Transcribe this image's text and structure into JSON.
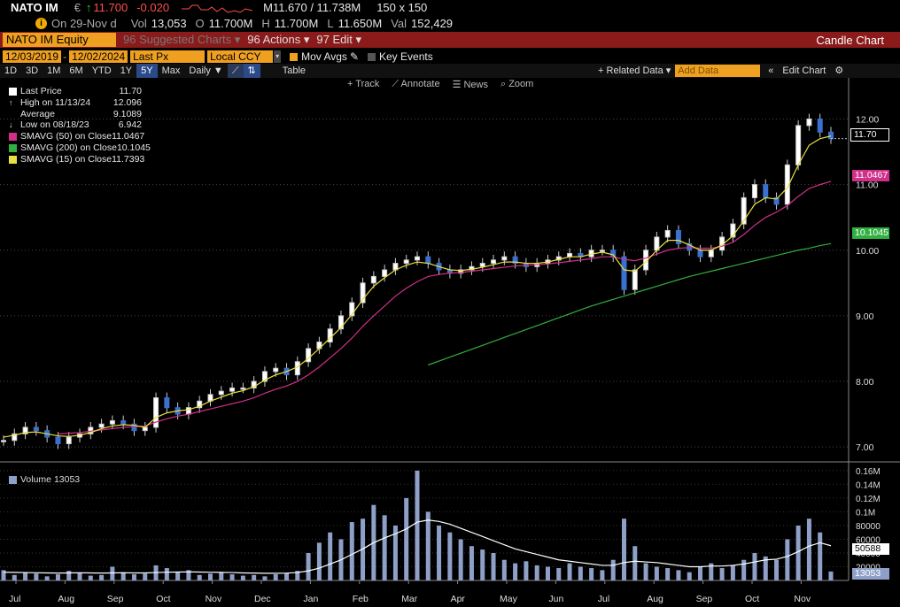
{
  "ticker": {
    "name": "NATO IM",
    "currency": "€",
    "arrow": "↑",
    "last": "11.700",
    "change": "-0.020",
    "mid": "M11.670 / 11.738M",
    "size": "150 x 150",
    "date_label": "On 29-Nov d",
    "vol_label": "Vol",
    "vol": "13,053",
    "open_label": "O",
    "open": "11.700M",
    "high_label": "H",
    "high": "11.700M",
    "low_label": "L",
    "low": "11.650M",
    "val_label": "Val",
    "val": "152,429"
  },
  "menu": {
    "security": "NATO IM Equity",
    "suggested": "96 Suggested Charts ▾",
    "actions": "96 Actions ▾",
    "edit": "97 Edit ▾",
    "title": "Candle Chart"
  },
  "params": {
    "start": "12/03/2019",
    "end": "12/02/2024",
    "field": "Last Px",
    "ccy": "Local CCY",
    "mov_avgs": "Mov Avgs",
    "key_events": "Key Events"
  },
  "toolbar": {
    "periods": [
      "1D",
      "3D",
      "1M",
      "6M",
      "YTD",
      "1Y",
      "5Y",
      "Max"
    ],
    "selected": "5Y",
    "freq": "Daily ▼",
    "table": "Table",
    "related": "+ Related Data ▾",
    "add_data_placeholder": "Add Data",
    "edit_chart": "Edit Chart"
  },
  "tools": {
    "track": "+ Track",
    "annotate": "⟋ Annotate",
    "news": "☰ News",
    "zoom": "⌕ Zoom"
  },
  "legend": [
    {
      "label": "Last Price",
      "value": "11.70",
      "color": "#ffffff"
    },
    {
      "label": "High on 11/13/24",
      "value": "12.096",
      "color": ""
    },
    {
      "label": "Average",
      "value": "9.1089",
      "color": ""
    },
    {
      "label": "Low on 08/18/23",
      "value": "6.942",
      "color": ""
    },
    {
      "label": "SMAVG (50)  on Close",
      "value": "11.0467",
      "color": "#d0308a"
    },
    {
      "label": "SMAVG (200)  on Close",
      "value": "10.1045",
      "color": "#30b040"
    },
    {
      "label": "SMAVG (15)  on Close",
      "value": "11.7393",
      "color": "#e8e040"
    }
  ],
  "volume_legend": "Volume 13053",
  "tags": {
    "last": "11.70",
    "sma50": "11.0467",
    "sma200": "10.1045",
    "vol_avg": "50588",
    "vol_last": "13053"
  },
  "colors": {
    "accent": "#f0a020",
    "menu_bar": "#8b1a1a",
    "sma50": "#d0308a",
    "sma200": "#30b040",
    "sma15": "#e8e040",
    "volume": "#8fa0c8"
  },
  "chart_data": {
    "type": "line",
    "price_axis": {
      "ticks": [
        "12.00",
        "11.00",
        "10.00",
        "9.00",
        "8.00",
        "7.00"
      ],
      "ylim": [
        6.8,
        12.6
      ]
    },
    "volume_axis": {
      "ticks": [
        "0.16M",
        "0.14M",
        "0.12M",
        "0.1M",
        "80000",
        "60000",
        "40000",
        "20000"
      ],
      "ylim": [
        0,
        165000
      ]
    },
    "x_labels": [
      "Jul",
      "Aug",
      "Sep",
      "Oct",
      "Nov",
      "Dec",
      "Jan",
      "Feb",
      "Mar",
      "Apr",
      "May",
      "Jun",
      "Jul",
      "Aug",
      "Sep",
      "Oct",
      "Nov"
    ],
    "close": [
      7.1,
      7.2,
      7.3,
      7.25,
      7.15,
      7.05,
      7.15,
      7.2,
      7.3,
      7.35,
      7.4,
      7.35,
      7.25,
      7.3,
      7.75,
      7.6,
      7.5,
      7.6,
      7.7,
      7.8,
      7.85,
      7.9,
      7.9,
      8.0,
      8.15,
      8.2,
      8.1,
      8.3,
      8.5,
      8.6,
      8.8,
      9.0,
      9.2,
      9.5,
      9.6,
      9.7,
      9.8,
      9.85,
      9.9,
      9.8,
      9.7,
      9.65,
      9.7,
      9.75,
      9.8,
      9.85,
      9.9,
      9.8,
      9.75,
      9.8,
      9.85,
      9.9,
      9.95,
      9.9,
      10.0,
      10.0,
      9.9,
      9.4,
      9.7,
      10.0,
      10.2,
      10.3,
      10.1,
      10.0,
      9.9,
      10.0,
      10.2,
      10.4,
      10.8,
      11.0,
      10.8,
      10.7,
      11.3,
      11.9,
      12.0,
      11.8,
      11.7
    ],
    "sma15": [
      7.15,
      7.18,
      7.22,
      7.23,
      7.2,
      7.17,
      7.16,
      7.18,
      7.22,
      7.28,
      7.32,
      7.34,
      7.33,
      7.3,
      7.45,
      7.52,
      7.55,
      7.57,
      7.62,
      7.7,
      7.76,
      7.82,
      7.86,
      7.92,
      8.02,
      8.1,
      8.15,
      8.22,
      8.35,
      8.5,
      8.66,
      8.82,
      9.02,
      9.25,
      9.45,
      9.58,
      9.7,
      9.77,
      9.82,
      9.8,
      9.75,
      9.7,
      9.69,
      9.71,
      9.74,
      9.78,
      9.82,
      9.82,
      9.8,
      9.8,
      9.82,
      9.86,
      9.9,
      9.9,
      9.94,
      9.97,
      9.93,
      9.7,
      9.68,
      9.82,
      10.0,
      10.15,
      10.15,
      10.08,
      10.0,
      10.0,
      10.08,
      10.22,
      10.45,
      10.7,
      10.8,
      10.78,
      10.95,
      11.3,
      11.6,
      11.7,
      11.74
    ],
    "sma50": [
      null,
      null,
      null,
      null,
      null,
      7.2,
      7.21,
      7.22,
      7.24,
      7.26,
      7.28,
      7.3,
      7.31,
      7.32,
      7.38,
      7.43,
      7.47,
      7.5,
      7.54,
      7.58,
      7.62,
      7.66,
      7.7,
      7.75,
      7.82,
      7.88,
      7.93,
      8.0,
      8.1,
      8.22,
      8.36,
      8.5,
      8.66,
      8.84,
      9.0,
      9.15,
      9.3,
      9.42,
      9.52,
      9.6,
      9.63,
      9.65,
      9.66,
      9.68,
      9.7,
      9.72,
      9.74,
      9.76,
      9.77,
      9.78,
      9.79,
      9.81,
      9.83,
      9.85,
      9.87,
      9.9,
      9.9,
      9.86,
      9.84,
      9.88,
      9.94,
      10.0,
      10.03,
      10.04,
      10.03,
      10.03,
      10.06,
      10.12,
      10.24,
      10.38,
      10.5,
      10.58,
      10.68,
      10.82,
      10.94,
      11.0,
      11.05
    ],
    "sma200": [
      null,
      null,
      null,
      null,
      null,
      null,
      null,
      null,
      null,
      null,
      null,
      null,
      null,
      null,
      null,
      null,
      null,
      null,
      null,
      null,
      null,
      null,
      null,
      null,
      null,
      null,
      null,
      null,
      null,
      null,
      null,
      null,
      null,
      null,
      null,
      null,
      null,
      null,
      null,
      8.25,
      8.31,
      8.37,
      8.43,
      8.49,
      8.55,
      8.61,
      8.67,
      8.73,
      8.79,
      8.85,
      8.91,
      8.97,
      9.03,
      9.09,
      9.15,
      9.2,
      9.25,
      9.3,
      9.35,
      9.4,
      9.45,
      9.5,
      9.55,
      9.6,
      9.64,
      9.68,
      9.72,
      9.76,
      9.8,
      9.84,
      9.88,
      9.92,
      9.96,
      10.0,
      10.03,
      10.07,
      10.1
    ],
    "volume": [
      15000,
      8000,
      12000,
      10000,
      6000,
      9000,
      14000,
      11000,
      7000,
      8000,
      20000,
      12000,
      9000,
      10000,
      22000,
      18000,
      12000,
      15000,
      8000,
      10000,
      12000,
      9000,
      7000,
      8000,
      6000,
      9000,
      11000,
      14000,
      40000,
      55000,
      70000,
      60000,
      85000,
      90000,
      110000,
      95000,
      80000,
      120000,
      160000,
      100000,
      80000,
      70000,
      60000,
      50000,
      45000,
      40000,
      30000,
      25000,
      28000,
      22000,
      20000,
      18000,
      25000,
      20000,
      18000,
      15000,
      30000,
      90000,
      50000,
      25000,
      20000,
      18000,
      15000,
      12000,
      20000,
      25000,
      18000,
      22000,
      30000,
      40000,
      35000,
      30000,
      60000,
      80000,
      90000,
      70000,
      13053
    ],
    "vol_avg": [
      12000,
      11800,
      11500,
      11200,
      11000,
      10800,
      11000,
      11200,
      11000,
      10800,
      11000,
      11200,
      11000,
      11000,
      11500,
      12000,
      12200,
      12500,
      12200,
      12000,
      11800,
      11500,
      11000,
      10800,
      10500,
      10500,
      10700,
      11500,
      14000,
      18000,
      24000,
      30000,
      38000,
      46000,
      55000,
      62000,
      68000,
      75000,
      85000,
      88000,
      86000,
      82000,
      76000,
      70000,
      64000,
      58000,
      52000,
      46000,
      42000,
      38000,
      34000,
      30000,
      28000,
      26000,
      24000,
      22000,
      22000,
      26000,
      28000,
      27000,
      26000,
      24000,
      22000,
      20000,
      20000,
      21000,
      21000,
      22000,
      24000,
      27000,
      30000,
      31000,
      35000,
      42000,
      50000,
      55000,
      50588
    ]
  }
}
